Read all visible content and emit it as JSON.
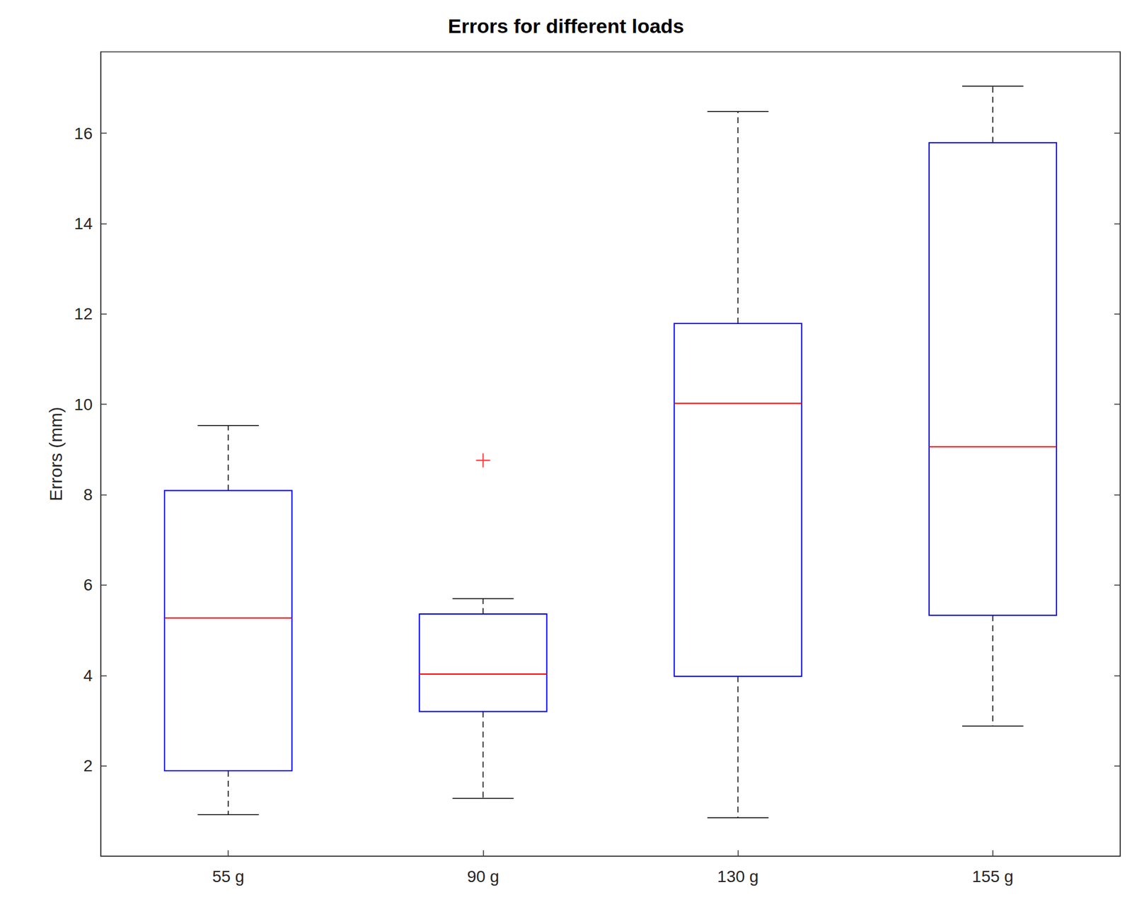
{
  "chart_data": {
    "type": "boxplot",
    "title": "Errors for different loads",
    "ylabel": "Errors (mm)",
    "categories": [
      "55 g",
      "90 g",
      "130 g",
      "155 g"
    ],
    "min": [
      0.92,
      1.28,
      0.85,
      2.88
    ],
    "q1": [
      1.89,
      3.2,
      3.98,
      5.33
    ],
    "median": [
      5.27,
      4.03,
      10.02,
      9.06
    ],
    "q3": [
      8.09,
      5.36,
      11.79,
      15.79
    ],
    "max": [
      9.53,
      5.7,
      16.48,
      17.04
    ],
    "outliers": [
      {
        "category": "90 g",
        "value": 8.76
      }
    ],
    "color": "#0000ff",
    "ylim": [
      0,
      17.8
    ],
    "yticks": [
      2,
      4,
      6,
      8,
      10,
      12,
      14,
      16
    ],
    "grid": false
  }
}
